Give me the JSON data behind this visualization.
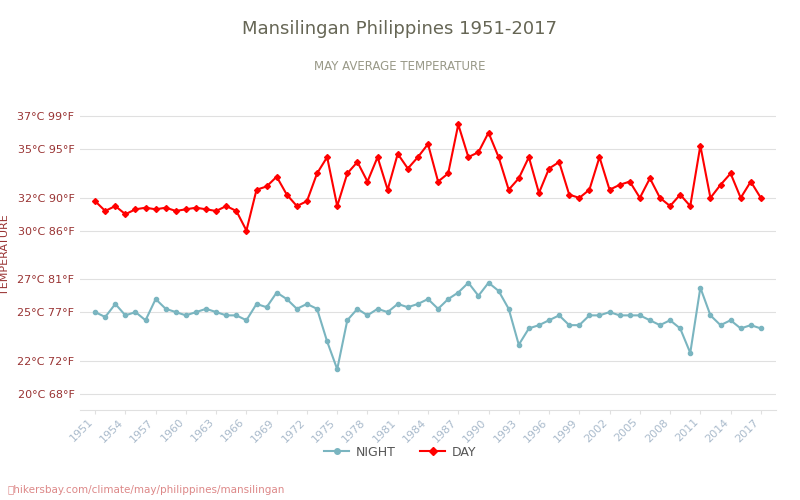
{
  "title": "Mansilingan Philippines 1951-2017",
  "subtitle": "MAY AVERAGE TEMPERATURE",
  "ylabel": "TEMPERATURE",
  "xlabel_url": "hikersbay.com/climate/may/philippines/mansilingan",
  "background_color": "#ffffff",
  "plot_bg_color": "#ffffff",
  "grid_color": "#e0e0e0",
  "years": [
    1951,
    1952,
    1953,
    1954,
    1955,
    1956,
    1957,
    1958,
    1959,
    1960,
    1961,
    1962,
    1963,
    1964,
    1965,
    1966,
    1967,
    1968,
    1969,
    1970,
    1971,
    1972,
    1973,
    1974,
    1975,
    1976,
    1977,
    1978,
    1979,
    1980,
    1981,
    1982,
    1983,
    1984,
    1985,
    1986,
    1987,
    1988,
    1989,
    1990,
    1991,
    1992,
    1993,
    1994,
    1995,
    1996,
    1997,
    1998,
    1999,
    2000,
    2001,
    2002,
    2003,
    2004,
    2005,
    2006,
    2007,
    2008,
    2009,
    2010,
    2011,
    2012,
    2013,
    2014,
    2015,
    2016,
    2017
  ],
  "day_temps": [
    31.8,
    31.2,
    31.5,
    31.0,
    31.3,
    31.4,
    31.3,
    31.4,
    31.2,
    31.3,
    31.4,
    31.3,
    31.2,
    31.5,
    31.2,
    30.0,
    32.5,
    32.7,
    33.3,
    32.2,
    31.5,
    31.8,
    33.5,
    34.5,
    31.5,
    33.5,
    34.2,
    33.0,
    34.5,
    32.5,
    34.7,
    33.8,
    34.5,
    35.3,
    33.0,
    33.5,
    36.5,
    34.5,
    34.8,
    36.0,
    34.5,
    32.5,
    33.2,
    34.5,
    32.3,
    33.8,
    34.2,
    32.2,
    32.0,
    32.5,
    34.5,
    32.5,
    32.8,
    33.0,
    32.0,
    33.2,
    32.0,
    31.5,
    32.2,
    31.5,
    35.2,
    32.0,
    32.8,
    33.5,
    32.0,
    33.0,
    32.0
  ],
  "night_temps": [
    25.0,
    24.7,
    25.5,
    24.8,
    25.0,
    24.5,
    25.8,
    25.2,
    25.0,
    24.8,
    25.0,
    25.2,
    25.0,
    24.8,
    24.8,
    24.5,
    25.5,
    25.3,
    26.2,
    25.8,
    25.2,
    25.5,
    25.2,
    23.2,
    21.5,
    24.5,
    25.2,
    24.8,
    25.2,
    25.0,
    25.5,
    25.3,
    25.5,
    25.8,
    25.2,
    25.8,
    26.2,
    26.8,
    26.0,
    26.8,
    26.3,
    25.2,
    23.0,
    24.0,
    24.2,
    24.5,
    24.8,
    24.2,
    24.2,
    24.8,
    24.8,
    25.0,
    24.8,
    24.8,
    24.8,
    24.5,
    24.2,
    24.5,
    24.0,
    22.5,
    26.5,
    24.8,
    24.2,
    24.5,
    24.0,
    24.2,
    24.0
  ],
  "day_color": "#ff0000",
  "night_color": "#7ab5c0",
  "day_marker": "D",
  "night_marker": "o",
  "marker_size": 3,
  "line_width": 1.5,
  "yticks_c": [
    20,
    22,
    25,
    27,
    30,
    32,
    35,
    37
  ],
  "yticks_f": [
    68,
    72,
    77,
    81,
    86,
    90,
    95,
    99
  ],
  "ylim": [
    19.0,
    38.0
  ],
  "xtick_years": [
    1951,
    1954,
    1957,
    1960,
    1963,
    1966,
    1969,
    1972,
    1975,
    1978,
    1981,
    1984,
    1987,
    1990,
    1993,
    1996,
    1999,
    2002,
    2005,
    2008,
    2011,
    2014,
    2017
  ],
  "title_color": "#666655",
  "subtitle_color": "#999988",
  "axis_label_color": "#993333",
  "tick_label_color": "#993333",
  "url_color": "#dd8888",
  "legend_night_label": "NIGHT",
  "legend_day_label": "DAY",
  "xtick_color": "#aabbcc"
}
